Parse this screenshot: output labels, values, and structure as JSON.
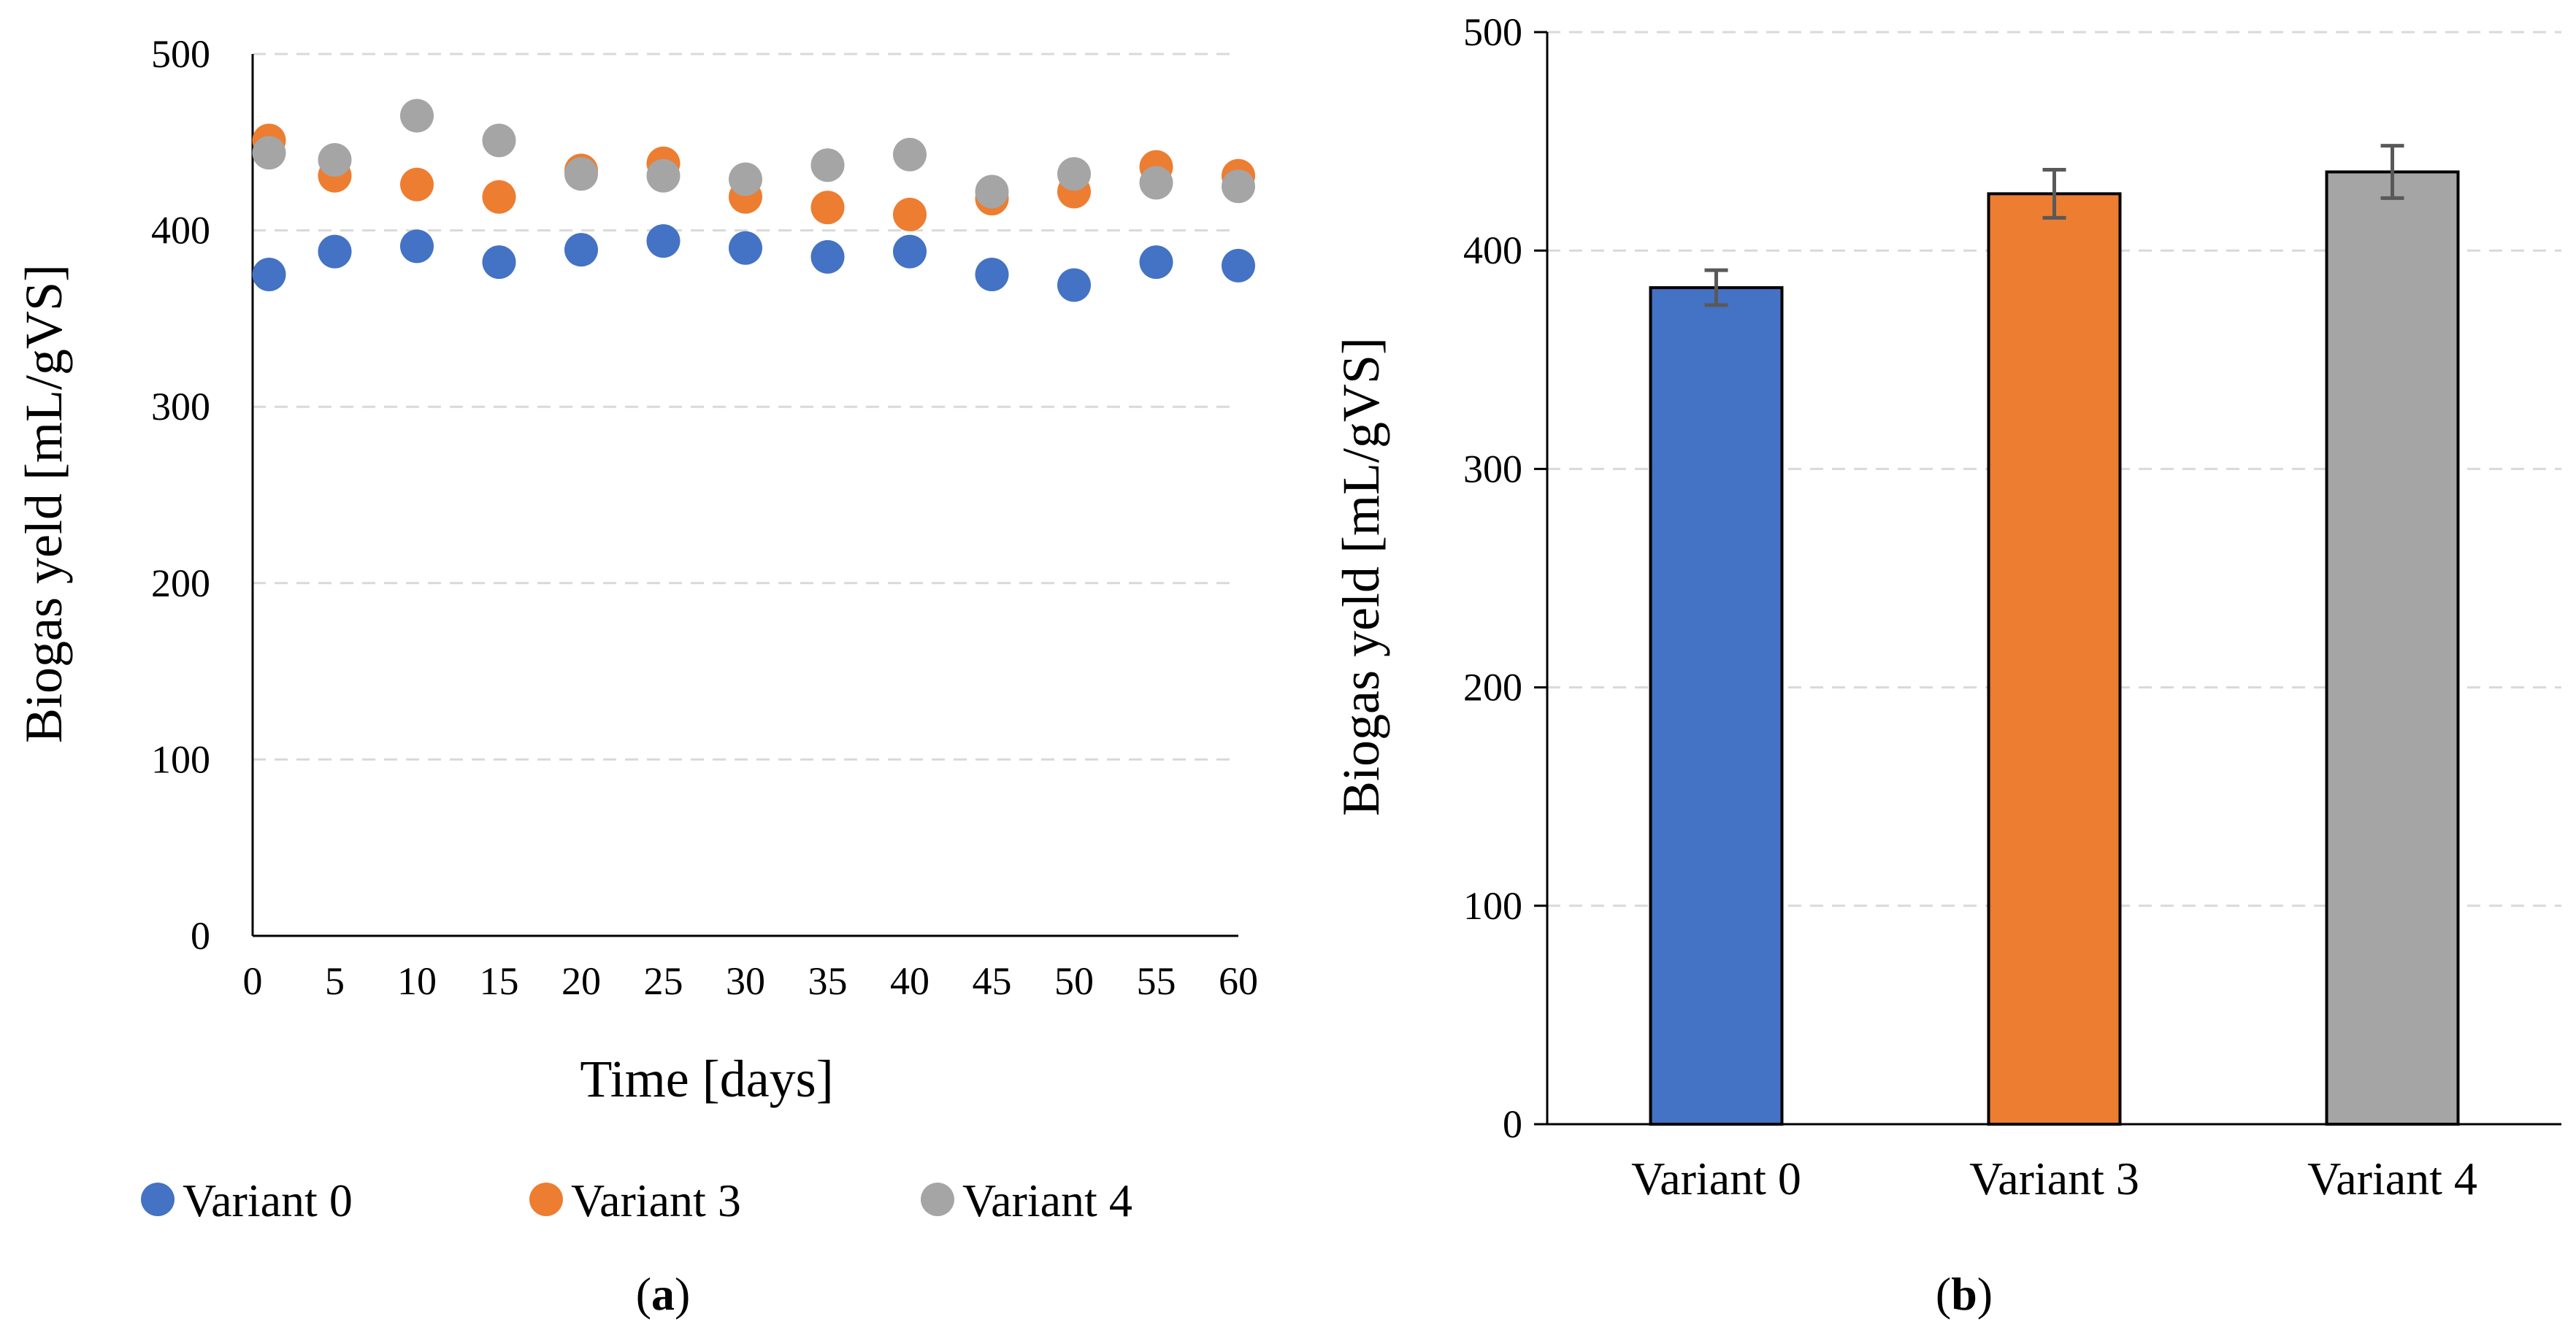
{
  "colors": {
    "variant0": "#4472C4",
    "variant3": "#ED7D31",
    "variant4": "#A5A5A5",
    "gridline": "#D9D9D9",
    "axis": "#000000",
    "errorbar": "#595959"
  },
  "chart_data": [
    {
      "type": "scatter",
      "panel_label": "a",
      "xlabel": "Time [days]",
      "ylabel": "Biogas yeld  [mL/gVS]",
      "xlim": [
        0,
        60
      ],
      "ylim": [
        0,
        500
      ],
      "xticks": [
        0,
        5,
        10,
        15,
        20,
        25,
        30,
        35,
        40,
        45,
        50,
        55,
        60
      ],
      "yticks": [
        0,
        100,
        200,
        300,
        400,
        500
      ],
      "grid": "horizontal-dashed",
      "legend_position": "bottom",
      "series": [
        {
          "name": "Variant 0",
          "color": "#4472C4",
          "x": [
            1,
            5,
            10,
            15,
            20,
            25,
            30,
            35,
            40,
            45,
            50,
            55,
            60
          ],
          "y": [
            375,
            388,
            391,
            382,
            389,
            394,
            390,
            385,
            388,
            375,
            369,
            382,
            380
          ]
        },
        {
          "name": "Variant 3",
          "color": "#ED7D31",
          "x": [
            1,
            5,
            10,
            15,
            20,
            25,
            30,
            35,
            40,
            45,
            50,
            55,
            60
          ],
          "y": [
            451,
            431,
            426,
            419,
            434,
            438,
            419,
            413,
            409,
            418,
            422,
            436,
            431
          ]
        },
        {
          "name": "Variant 4",
          "color": "#A5A5A5",
          "x": [
            1,
            5,
            10,
            15,
            20,
            25,
            30,
            35,
            40,
            45,
            50,
            55,
            60
          ],
          "y": [
            444,
            440,
            465,
            451,
            432,
            431,
            429,
            437,
            443,
            422,
            432,
            427,
            425
          ]
        }
      ]
    },
    {
      "type": "bar",
      "panel_label": "b",
      "xlabel": "",
      "ylabel": "Biogas yeld [mL/gVS]",
      "ylim": [
        0,
        500
      ],
      "yticks": [
        0,
        100,
        200,
        300,
        400,
        500
      ],
      "grid": "horizontal-dashed",
      "categories": [
        "Variant 0",
        "Variant 3",
        "Variant 4"
      ],
      "values": [
        383,
        426,
        436
      ],
      "errors": [
        8,
        11,
        12
      ],
      "colors": [
        "#4472C4",
        "#ED7D31",
        "#A5A5A5"
      ]
    }
  ]
}
